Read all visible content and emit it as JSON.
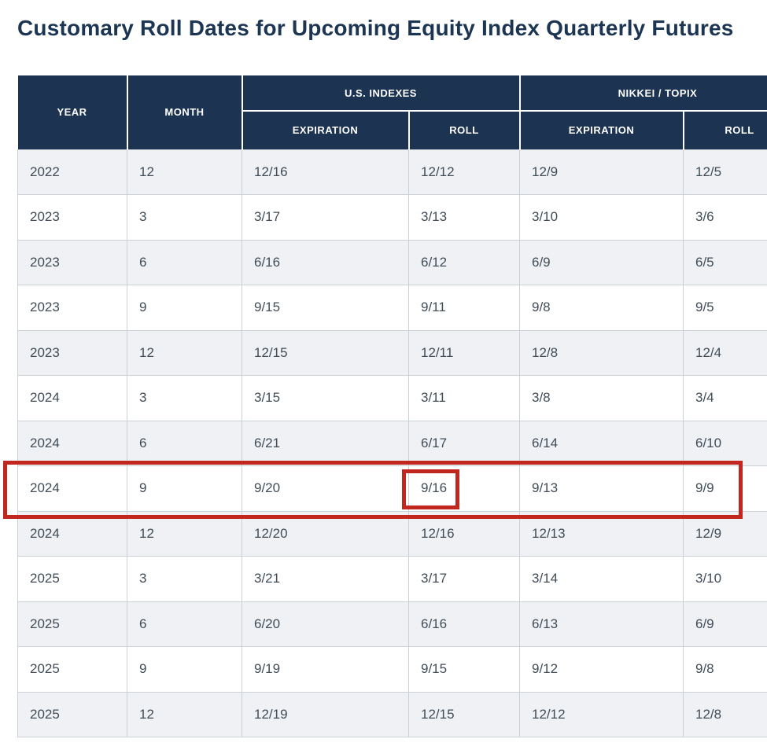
{
  "title": "Customary Roll Dates for Upcoming Equity Index Quarterly Futures",
  "table": {
    "columns": {
      "year": "YEAR",
      "month": "MONTH",
      "us_group": "U.S. INDEXES",
      "nikkei_group": "NIKKEI / TOPIX",
      "expiration": "EXPIRATION",
      "roll": "ROLL"
    },
    "rows": [
      {
        "year": "2022",
        "month": "12",
        "us_expiration": "12/16",
        "us_roll": "12/12",
        "nikkei_expiration": "12/9",
        "nikkei_roll": "12/5"
      },
      {
        "year": "2023",
        "month": "3",
        "us_expiration": "3/17",
        "us_roll": "3/13",
        "nikkei_expiration": "3/10",
        "nikkei_roll": "3/6"
      },
      {
        "year": "2023",
        "month": "6",
        "us_expiration": "6/16",
        "us_roll": "6/12",
        "nikkei_expiration": "6/9",
        "nikkei_roll": "6/5"
      },
      {
        "year": "2023",
        "month": "9",
        "us_expiration": "9/15",
        "us_roll": "9/11",
        "nikkei_expiration": "9/8",
        "nikkei_roll": "9/5"
      },
      {
        "year": "2023",
        "month": "12",
        "us_expiration": "12/15",
        "us_roll": "12/11",
        "nikkei_expiration": "12/8",
        "nikkei_roll": "12/4"
      },
      {
        "year": "2024",
        "month": "3",
        "us_expiration": "3/15",
        "us_roll": "3/11",
        "nikkei_expiration": "3/8",
        "nikkei_roll": "3/4"
      },
      {
        "year": "2024",
        "month": "6",
        "us_expiration": "6/21",
        "us_roll": "6/17",
        "nikkei_expiration": "6/14",
        "nikkei_roll": "6/10"
      },
      {
        "year": "2024",
        "month": "9",
        "us_expiration": "9/20",
        "us_roll": "9/16",
        "nikkei_expiration": "9/13",
        "nikkei_roll": "9/9"
      },
      {
        "year": "2024",
        "month": "12",
        "us_expiration": "12/20",
        "us_roll": "12/16",
        "nikkei_expiration": "12/13",
        "nikkei_roll": "12/9"
      },
      {
        "year": "2025",
        "month": "3",
        "us_expiration": "3/21",
        "us_roll": "3/17",
        "nikkei_expiration": "3/14",
        "nikkei_roll": "3/10"
      },
      {
        "year": "2025",
        "month": "6",
        "us_expiration": "6/20",
        "us_roll": "6/16",
        "nikkei_expiration": "6/13",
        "nikkei_roll": "6/9"
      },
      {
        "year": "2025",
        "month": "9",
        "us_expiration": "9/19",
        "us_roll": "9/15",
        "nikkei_expiration": "9/12",
        "nikkei_roll": "9/8"
      },
      {
        "year": "2025",
        "month": "12",
        "us_expiration": "12/19",
        "us_roll": "12/15",
        "nikkei_expiration": "12/12",
        "nikkei_roll": "12/8"
      }
    ],
    "highlighted_row": {
      "year": "2024",
      "month": "9"
    },
    "highlighted_cell_value": "9/16"
  },
  "colors": {
    "header_background": "#1c3351",
    "title_text": "#1b3553",
    "body_text": "#414c57",
    "row_stripe": "#eff1f4",
    "grid_border": "#cbd0d6",
    "annotation_red": "#c1271e"
  }
}
